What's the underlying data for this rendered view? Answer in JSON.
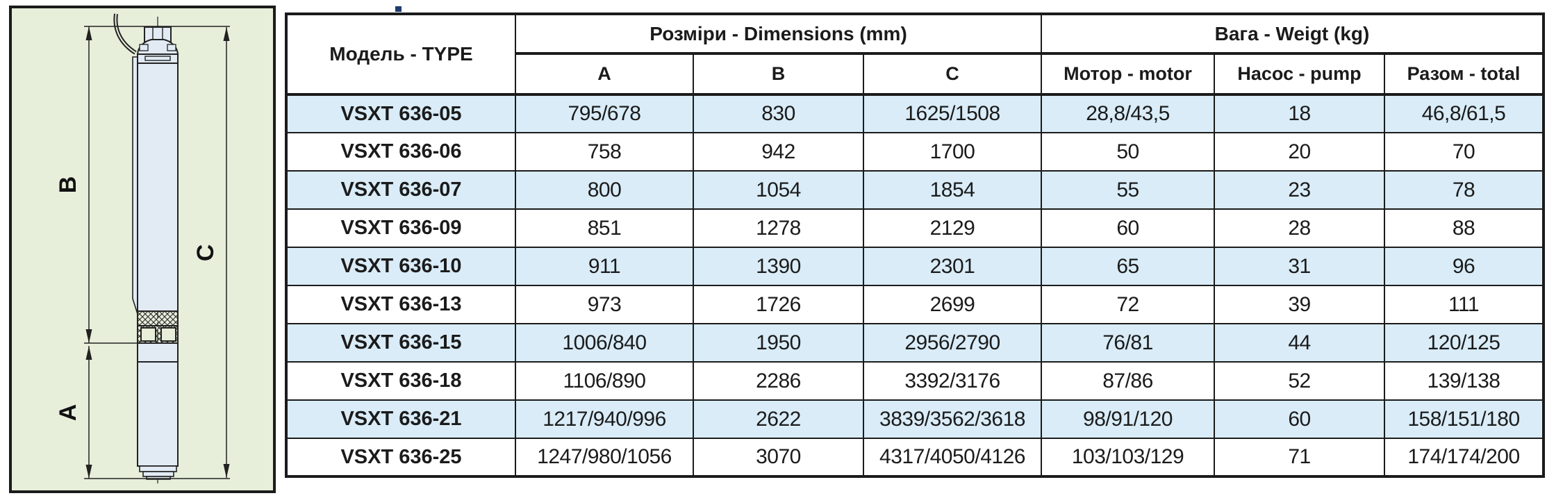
{
  "diagram": {
    "labels": {
      "b": "B",
      "a": "A",
      "c": "C"
    },
    "colors": {
      "background": "#e7eeda",
      "pump_fill": "#e2ebf4",
      "line": "#1b1b1b"
    }
  },
  "table": {
    "header": {
      "model": "Модель - TYPE",
      "dimensions_group": "Розміри - Dimensions (mm)",
      "weight_group": "Вага - Weigt (kg)",
      "col_a": "A",
      "col_b": "B",
      "col_c": "C",
      "col_motor": "Мотор - motor",
      "col_pump": "Насос - pump",
      "col_total": "Разом - total"
    },
    "row_alt_color": "#d9ecf8",
    "rows": [
      {
        "model": "VSXT 636-05",
        "a": "795/678",
        "b": "830",
        "c": "1625/1508",
        "motor": "28,8/43,5",
        "pump": "18",
        "total": "46,8/61,5"
      },
      {
        "model": "VSXT 636-06",
        "a": "758",
        "b": "942",
        "c": "1700",
        "motor": "50",
        "pump": "20",
        "total": "70"
      },
      {
        "model": "VSXT 636-07",
        "a": "800",
        "b": "1054",
        "c": "1854",
        "motor": "55",
        "pump": "23",
        "total": "78"
      },
      {
        "model": "VSXT 636-09",
        "a": "851",
        "b": "1278",
        "c": "2129",
        "motor": "60",
        "pump": "28",
        "total": "88"
      },
      {
        "model": "VSXT 636-10",
        "a": "911",
        "b": "1390",
        "c": "2301",
        "motor": "65",
        "pump": "31",
        "total": "96"
      },
      {
        "model": "VSXT 636-13",
        "a": "973",
        "b": "1726",
        "c": "2699",
        "motor": "72",
        "pump": "39",
        "total": "111"
      },
      {
        "model": "VSXT 636-15",
        "a": "1006/840",
        "b": "1950",
        "c": "2956/2790",
        "motor": "76/81",
        "pump": "44",
        "total": "120/125"
      },
      {
        "model": "VSXT 636-18",
        "a": "1106/890",
        "b": "2286",
        "c": "3392/3176",
        "motor": "87/86",
        "pump": "52",
        "total": "139/138"
      },
      {
        "model": "VSXT 636-21",
        "a": "1217/940/996",
        "b": "2622",
        "c": "3839/3562/3618",
        "motor": "98/91/120",
        "pump": "60",
        "total": "158/151/180"
      },
      {
        "model": "VSXT 636-25",
        "a": "1247/980/1056",
        "b": "3070",
        "c": "4317/4050/4126",
        "motor": "103/103/129",
        "pump": "71",
        "total": "174/174/200"
      }
    ]
  }
}
